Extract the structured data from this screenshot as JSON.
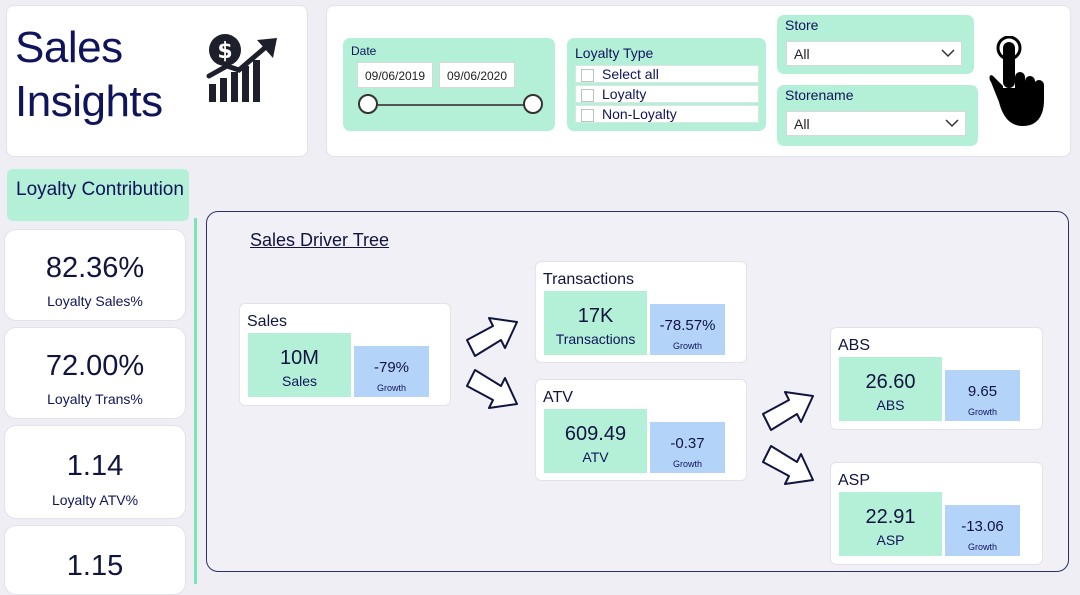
{
  "title": {
    "line1": "Sales",
    "line2": "Insights",
    "icon": "money-growth-icon"
  },
  "filters": {
    "date": {
      "label": "Date",
      "start": "09/06/2019",
      "end": "09/06/2020"
    },
    "loyalty_type": {
      "label": "Loyalty Type",
      "options": [
        "Select all",
        "Loyalty",
        "Non-Loyalty"
      ]
    },
    "store": {
      "label": "Store",
      "selected": "All"
    },
    "storename": {
      "label": "Storename",
      "selected": "All"
    },
    "hand_icon": "pointer-hand-icon"
  },
  "loyalty": {
    "header": "Loyalty Contribution",
    "kpis": [
      {
        "value": "82.36%",
        "label": "Loyalty Sales%"
      },
      {
        "value": "72.00%",
        "label": "Loyalty Trans%"
      },
      {
        "value": "1.14",
        "label": "Loyalty ATV%"
      },
      {
        "value": "1.15",
        "label": ""
      }
    ]
  },
  "tree": {
    "title": "Sales Driver Tree",
    "growth_label": "Growth",
    "nodes": {
      "sales": {
        "title": "Sales",
        "value": "10M",
        "sub": "Sales",
        "growth": "-79%"
      },
      "transactions": {
        "title": "Transactions",
        "value": "17K",
        "sub": "Transactions",
        "growth": "-78.57%"
      },
      "atv": {
        "title": "ATV",
        "value": "609.49",
        "sub": "ATV",
        "growth": "-0.37"
      },
      "abs": {
        "title": "ABS",
        "value": "26.60",
        "sub": "ABS",
        "growth": "9.65"
      },
      "asp": {
        "title": "ASP",
        "value": "22.91",
        "sub": "ASP",
        "growth": "-13.06"
      }
    }
  },
  "colors": {
    "accent_green": "#b4f0d8",
    "accent_blue": "#b3d3f9",
    "navy": "#10145a"
  }
}
